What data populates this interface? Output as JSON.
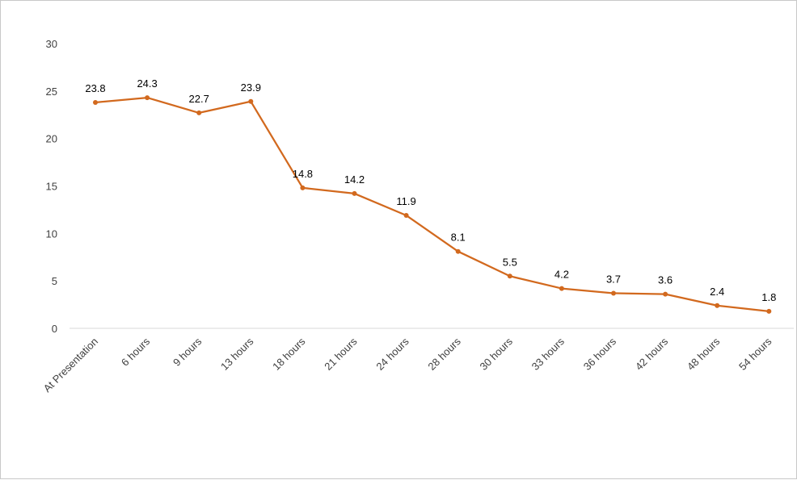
{
  "chart_data": {
    "type": "line",
    "title": "",
    "xlabel": "",
    "ylabel": "",
    "categories": [
      "At Presentation",
      "6 hours",
      "9 hours",
      "13 hours",
      "18 hours",
      "21 hours",
      "24 hours",
      "28 hours",
      "30 hours",
      "33 hours",
      "36 hours",
      "42 hours",
      "48 hours",
      "54 hours"
    ],
    "series": [
      {
        "values": [
          23.8,
          24.3,
          22.7,
          23.9,
          14.8,
          14.2,
          11.9,
          8.1,
          5.5,
          4.2,
          3.7,
          3.6,
          2.4,
          1.8
        ],
        "labels": [
          "23.8",
          "24.3",
          "22.7",
          "23.9",
          "14.8",
          "14.2",
          "11.9",
          "8.1",
          "5.5",
          "4.2",
          "3.7",
          "3.6",
          "2.4",
          "1.8"
        ],
        "color": "#D2691E"
      }
    ],
    "ylim": [
      0,
      30
    ],
    "yticks": [
      "0",
      "5",
      "10",
      "15",
      "20",
      "25",
      "30"
    ],
    "grid": false,
    "legend": "none"
  }
}
